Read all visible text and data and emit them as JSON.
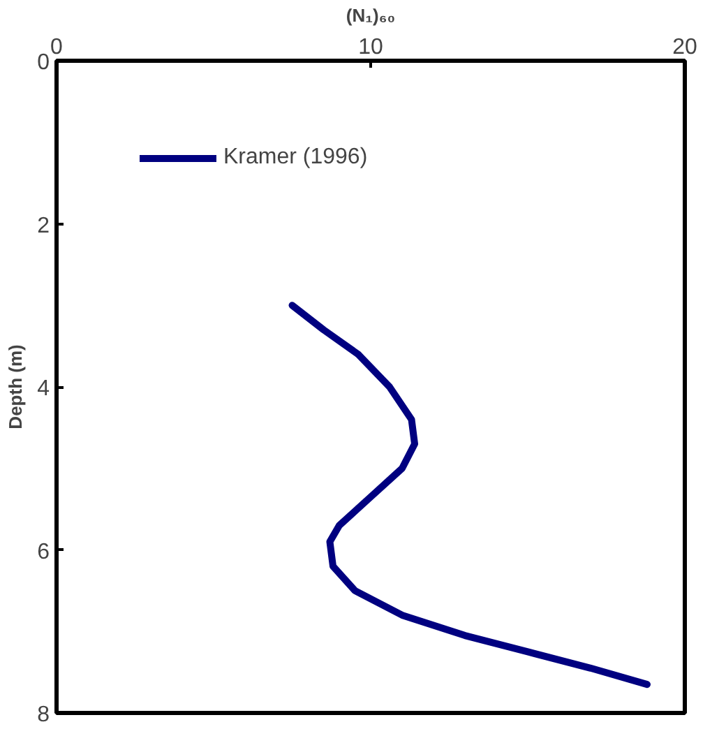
{
  "chart_data": {
    "type": "line",
    "xlabel": "(N₁)₆₀",
    "ylabel": "Depth (m)",
    "x": [
      7.5,
      8.5,
      9.6,
      10.6,
      11.3,
      11.4,
      11.0,
      10.0,
      9.0,
      8.7,
      8.8,
      9.5,
      11.0,
      13.0,
      15.0,
      17.0,
      18.8
    ],
    "series": [
      {
        "name": "Kramer (1996)",
        "color": "#000080",
        "values": [
          3.0,
          3.3,
          3.6,
          4.0,
          4.4,
          4.7,
          5.0,
          5.35,
          5.7,
          5.9,
          6.2,
          6.5,
          6.8,
          7.05,
          7.25,
          7.45,
          7.65
        ]
      }
    ],
    "xlim": [
      0,
      20
    ],
    "xticks": [
      0,
      10,
      20
    ],
    "ylim": [
      8,
      0
    ],
    "yticks": [
      0,
      2,
      4,
      6,
      8
    ],
    "grid": false,
    "legend": "top left",
    "marker": "none",
    "line_style": "solid"
  }
}
